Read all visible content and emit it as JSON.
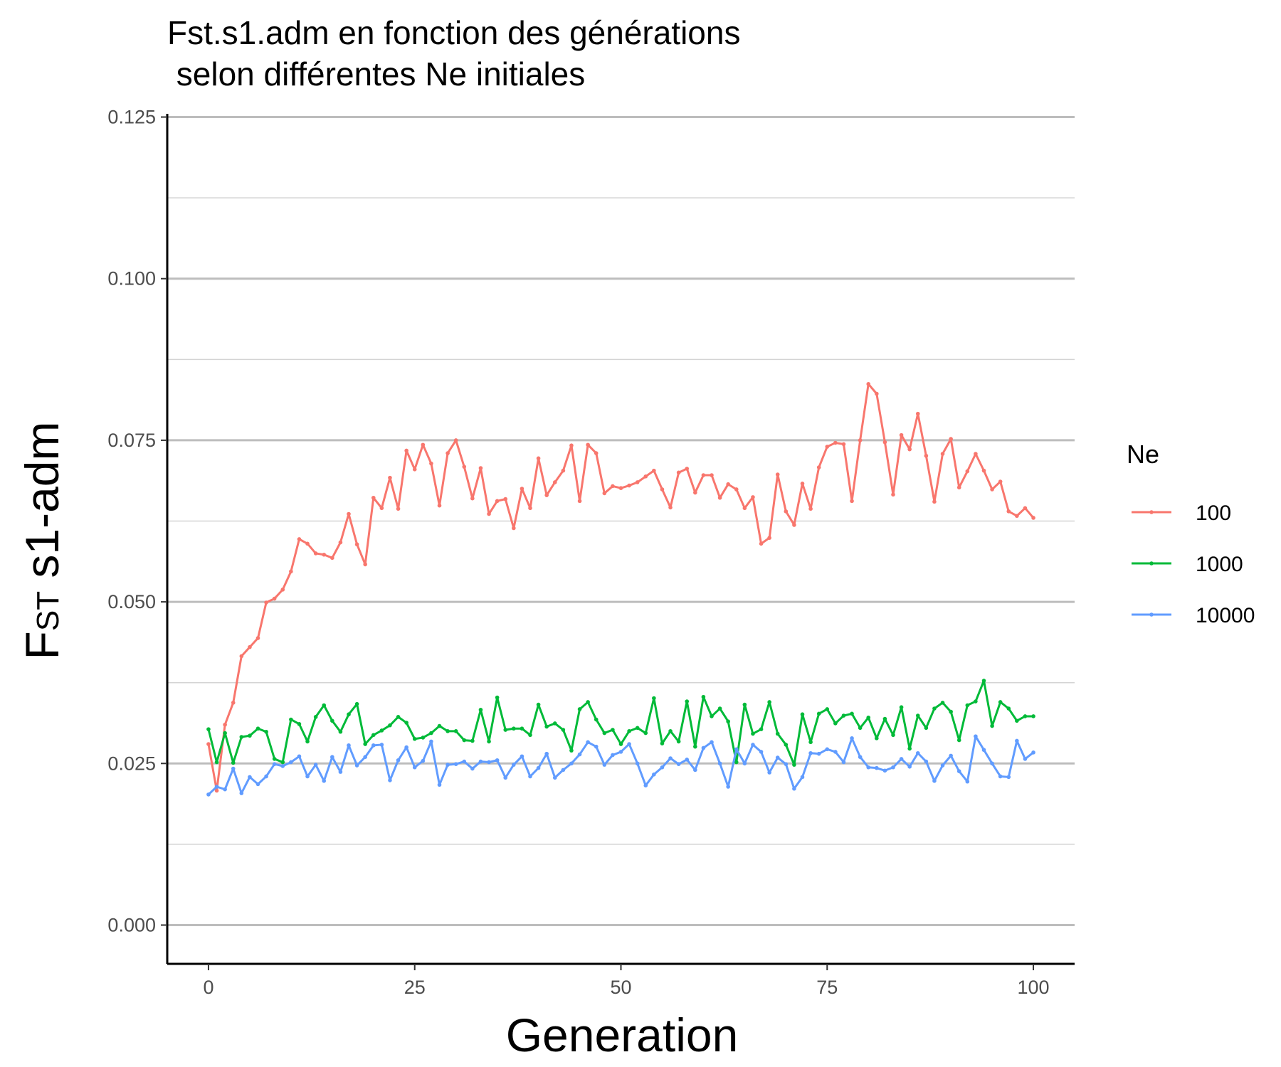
{
  "chart_data": {
    "type": "line",
    "title_line1": "Fst.s1.adm en fonction des générations",
    "title_line2": " selon différentes Ne initiales",
    "xlabel": "Generation",
    "ylabel_main": "F",
    "ylabel_sub": "ST",
    "ylabel_rest": " s1-adm",
    "xlim": [
      -5,
      105
    ],
    "ylim": [
      -0.006,
      0.1255
    ],
    "x_ticks": [
      0,
      25,
      50,
      75,
      100
    ],
    "x_tick_labels": [
      "0",
      "25",
      "50",
      "75",
      "100"
    ],
    "y_ticks": [
      0,
      0.025,
      0.05,
      0.075,
      0.1,
      0.125
    ],
    "y_tick_labels": [
      "0.000",
      "0.025",
      "0.050",
      "0.075",
      "0.100",
      "0.125"
    ],
    "y_minor_ticks": [
      0.0125,
      0.0375,
      0.0625,
      0.0875,
      0.1125
    ],
    "grid": "horizontal",
    "legend": {
      "title": "Ne",
      "position": "right"
    },
    "series": [
      {
        "name": "100",
        "color": "#F8766D",
        "values": [
          0.028,
          0.0208,
          0.031,
          0.0344,
          0.0416,
          0.043,
          0.0444,
          0.0499,
          0.0505,
          0.0519,
          0.0547,
          0.0597,
          0.059,
          0.0575,
          0.0573,
          0.0568,
          0.0592,
          0.0636,
          0.0589,
          0.0558,
          0.0661,
          0.0645,
          0.0692,
          0.0644,
          0.0734,
          0.0705,
          0.0743,
          0.0714,
          0.0649,
          0.073,
          0.075,
          0.0709,
          0.066,
          0.0707,
          0.0636,
          0.0656,
          0.0659,
          0.0614,
          0.0675,
          0.0645,
          0.0722,
          0.0665,
          0.0685,
          0.0703,
          0.0742,
          0.0656,
          0.0743,
          0.073,
          0.0668,
          0.0679,
          0.0676,
          0.068,
          0.0685,
          0.0694,
          0.0703,
          0.0674,
          0.0646,
          0.07,
          0.0706,
          0.0669,
          0.0696,
          0.0696,
          0.0661,
          0.0682,
          0.0674,
          0.0645,
          0.0662,
          0.059,
          0.0599,
          0.0697,
          0.064,
          0.0619,
          0.0683,
          0.0644,
          0.0708,
          0.074,
          0.0746,
          0.0744,
          0.0656,
          0.075,
          0.0837,
          0.0822,
          0.0747,
          0.0666,
          0.0758,
          0.0736,
          0.0791,
          0.0726,
          0.0655,
          0.0729,
          0.0752,
          0.0677,
          0.0702,
          0.0729,
          0.0703,
          0.0674,
          0.0686,
          0.064,
          0.0633,
          0.0645,
          0.063
        ]
      },
      {
        "name": "1000",
        "color": "#00BA38",
        "values": [
          0.0303,
          0.0252,
          0.0297,
          0.0251,
          0.0291,
          0.0293,
          0.0304,
          0.0299,
          0.0257,
          0.0252,
          0.0318,
          0.0311,
          0.0284,
          0.0322,
          0.034,
          0.0316,
          0.0299,
          0.0326,
          0.0342,
          0.028,
          0.0294,
          0.0301,
          0.0309,
          0.0322,
          0.0313,
          0.0288,
          0.029,
          0.0297,
          0.0308,
          0.03,
          0.03,
          0.0286,
          0.0285,
          0.0333,
          0.0284,
          0.0352,
          0.0302,
          0.0304,
          0.0304,
          0.0294,
          0.0341,
          0.0307,
          0.0312,
          0.0302,
          0.027,
          0.0334,
          0.0345,
          0.0318,
          0.0297,
          0.0302,
          0.028,
          0.03,
          0.0305,
          0.0297,
          0.0351,
          0.0281,
          0.03,
          0.0284,
          0.0346,
          0.0276,
          0.0353,
          0.0323,
          0.0335,
          0.0315,
          0.0252,
          0.0341,
          0.0296,
          0.0303,
          0.0345,
          0.0296,
          0.0279,
          0.0248,
          0.0326,
          0.0283,
          0.0327,
          0.0334,
          0.0312,
          0.0324,
          0.0327,
          0.0305,
          0.0321,
          0.0289,
          0.0319,
          0.0294,
          0.0337,
          0.0273,
          0.0324,
          0.0305,
          0.0335,
          0.0344,
          0.033,
          0.0286,
          0.034,
          0.0346,
          0.0378,
          0.0308,
          0.0345,
          0.0335,
          0.0316,
          0.0323,
          0.0323
        ]
      },
      {
        "name": "10000",
        "color": "#619CFF",
        "values": [
          0.0202,
          0.0214,
          0.021,
          0.0242,
          0.0204,
          0.0229,
          0.0218,
          0.023,
          0.0249,
          0.0246,
          0.0252,
          0.0261,
          0.023,
          0.0248,
          0.0223,
          0.026,
          0.0237,
          0.0278,
          0.0247,
          0.026,
          0.0278,
          0.0279,
          0.0224,
          0.0255,
          0.0275,
          0.0244,
          0.0254,
          0.0284,
          0.0217,
          0.0248,
          0.0249,
          0.0253,
          0.0242,
          0.0253,
          0.0252,
          0.0255,
          0.0228,
          0.0248,
          0.0261,
          0.023,
          0.0243,
          0.0265,
          0.0228,
          0.024,
          0.025,
          0.0264,
          0.0283,
          0.0276,
          0.0248,
          0.0263,
          0.0268,
          0.028,
          0.025,
          0.0216,
          0.0233,
          0.0244,
          0.0258,
          0.0249,
          0.0256,
          0.024,
          0.0274,
          0.0283,
          0.025,
          0.0214,
          0.0272,
          0.025,
          0.0279,
          0.0268,
          0.0236,
          0.0259,
          0.0249,
          0.0211,
          0.0229,
          0.0266,
          0.0265,
          0.0272,
          0.0268,
          0.0252,
          0.0289,
          0.026,
          0.0244,
          0.0243,
          0.0239,
          0.0244,
          0.0257,
          0.0245,
          0.0266,
          0.0253,
          0.0223,
          0.0247,
          0.0262,
          0.0238,
          0.0222,
          0.0292,
          0.0271,
          0.025,
          0.023,
          0.0229,
          0.0285,
          0.0257,
          0.0267
        ]
      }
    ]
  }
}
